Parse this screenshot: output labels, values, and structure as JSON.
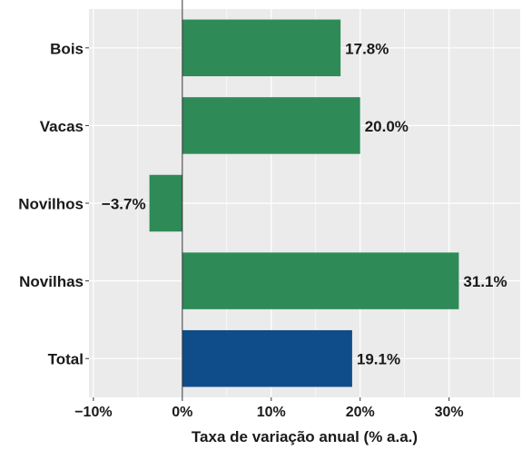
{
  "chart_data": {
    "type": "bar",
    "orientation": "horizontal",
    "categories": [
      "Bois",
      "Vacas",
      "Novilhos",
      "Novilhas",
      "Total"
    ],
    "values": [
      17.8,
      20.0,
      -3.7,
      31.1,
      19.1
    ],
    "data_labels": [
      "17.8%",
      "20.0%",
      "−3.7%",
      "31.1%",
      "19.1%"
    ],
    "bar_colors": [
      "#2e8b57",
      "#2e8b57",
      "#2e8b57",
      "#2e8b57",
      "#0f4c8a"
    ],
    "xlabel": "Taxa de variação anual (% a.a.)",
    "ylabel": "",
    "xlim": [
      -10.5,
      38
    ],
    "xticks": [
      -10,
      0,
      10,
      20,
      30
    ],
    "xtick_labels": [
      "−10%",
      "0%",
      "10%",
      "20%",
      "30%"
    ],
    "grid": true,
    "reference_line_at": 0,
    "panel_background": "#ebebeb",
    "grid_color": "#ffffff"
  }
}
